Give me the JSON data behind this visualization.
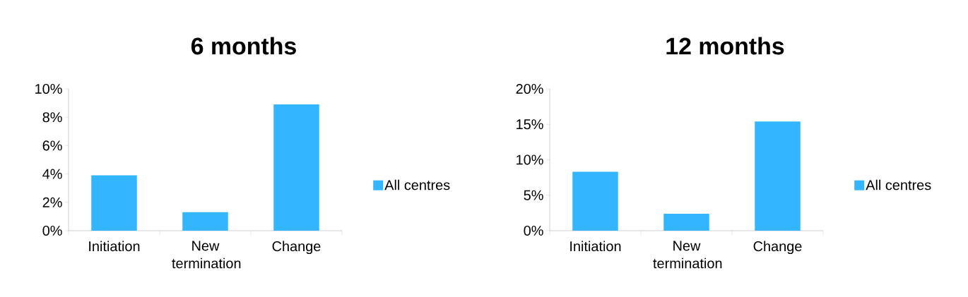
{
  "chart_data": [
    {
      "type": "bar",
      "title": "6 months",
      "categories": [
        "Initiation",
        "New termination",
        "Change"
      ],
      "series": [
        {
          "name": "All centres",
          "color": "#33b5ff",
          "values": [
            3.9,
            1.3,
            8.9
          ]
        }
      ],
      "ylim": [
        0,
        10
      ],
      "yticks": [
        {
          "value": 0,
          "label": "0%"
        },
        {
          "value": 2,
          "label": "2%"
        },
        {
          "value": 4,
          "label": "4%"
        },
        {
          "value": 6,
          "label": "6%"
        },
        {
          "value": 8,
          "label": "8%"
        },
        {
          "value": 10,
          "label": "10%"
        }
      ],
      "legend": "right"
    },
    {
      "type": "bar",
      "title": "12 months",
      "categories": [
        "Initiation",
        "New termination",
        "Change"
      ],
      "series": [
        {
          "name": "All centres",
          "color": "#33b5ff",
          "values": [
            8.3,
            2.4,
            15.4
          ]
        }
      ],
      "ylim": [
        0,
        20
      ],
      "yticks": [
        {
          "value": 0,
          "label": "0%"
        },
        {
          "value": 5,
          "label": "5%"
        },
        {
          "value": 10,
          "label": "10%"
        },
        {
          "value": 15,
          "label": "15%"
        },
        {
          "value": 20,
          "label": "20%"
        }
      ],
      "legend": "right"
    }
  ]
}
